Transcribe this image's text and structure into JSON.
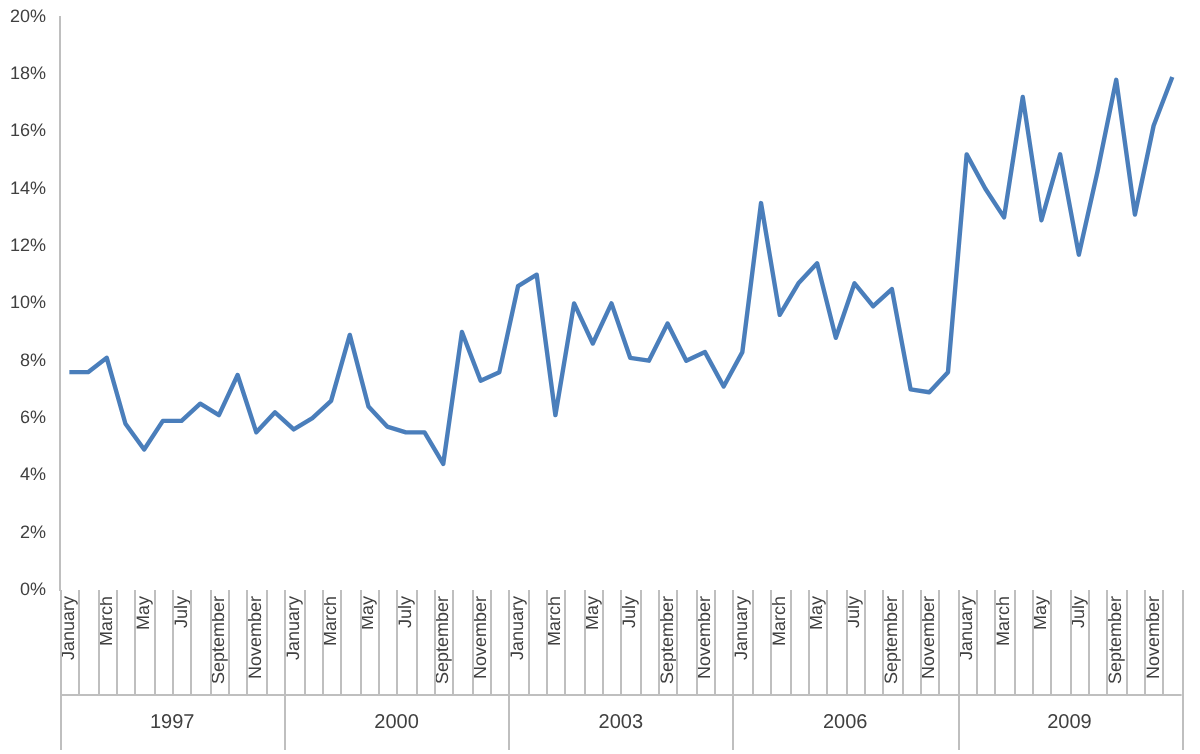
{
  "chart_data": {
    "type": "line",
    "categories": [
      "January",
      null,
      "March",
      null,
      "May",
      null,
      "July",
      null,
      "September",
      null,
      "November",
      null,
      "January",
      null,
      "March",
      null,
      "May",
      null,
      "July",
      null,
      "September",
      null,
      "November",
      null,
      "January",
      null,
      "March",
      null,
      "May",
      null,
      "July",
      null,
      "September",
      null,
      "November",
      null,
      "January",
      null,
      "March",
      null,
      "May",
      null,
      "July",
      null,
      "September",
      null,
      "November",
      null,
      "January",
      null,
      "March",
      null,
      "May",
      null,
      "July",
      null,
      "September",
      null,
      "November",
      null
    ],
    "series": [
      {
        "color": "#4a7ebb",
        "values": [
          7.6,
          7.6,
          8.1,
          5.8,
          4.9,
          5.9,
          5.9,
          6.5,
          6.1,
          7.5,
          5.5,
          6.2,
          5.6,
          6.0,
          6.6,
          8.9,
          6.4,
          5.7,
          5.5,
          5.5,
          4.4,
          9.0,
          7.3,
          7.6,
          10.6,
          11.0,
          6.1,
          10.0,
          8.6,
          10.0,
          8.1,
          8.0,
          9.3,
          8.0,
          8.3,
          7.1,
          8.3,
          13.5,
          9.6,
          10.7,
          11.4,
          8.8,
          10.7,
          9.9,
          10.5,
          7.0,
          6.9,
          7.6,
          15.2,
          14.0,
          13.0,
          17.2,
          12.9,
          15.2,
          11.7,
          14.6,
          17.8,
          13.1,
          16.2,
          17.9
        ]
      }
    ],
    "annotations": [
      "1997",
      "2000",
      "2003",
      "2006",
      "2009"
    ],
    "ylim": [
      0,
      20
    ],
    "yticks": [
      {
        "value": 0,
        "label": "0%"
      },
      {
        "value": 2,
        "label": "2%"
      },
      {
        "value": 4,
        "label": "4%"
      },
      {
        "value": 6,
        "label": "6%"
      },
      {
        "value": 8,
        "label": "8%"
      },
      {
        "value": 10,
        "label": "10%"
      },
      {
        "value": 12,
        "label": "12%"
      },
      {
        "value": 14,
        "label": "14%"
      },
      {
        "value": 16,
        "label": "16%"
      },
      {
        "value": 18,
        "label": "18%"
      },
      {
        "value": 20,
        "label": "20%"
      }
    ],
    "legend": false,
    "grid": false,
    "marker": "none",
    "line_style": "solid"
  }
}
